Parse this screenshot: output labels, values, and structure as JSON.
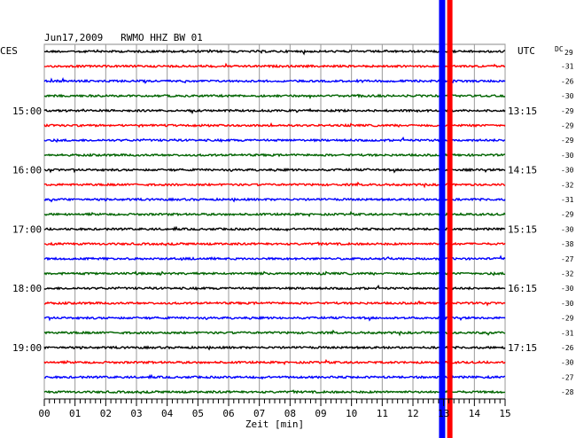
{
  "header": {
    "title": "Jun17,2009   RWMO HHZ BW 01",
    "left_zone": "CES",
    "right_zone": "UTC",
    "dc_label": "DC"
  },
  "chart_data": {
    "type": "line",
    "title": "Jun17,2009   RWMO HHZ BW 01",
    "xlabel": "Zeit [min]",
    "xlim": [
      0,
      15
    ],
    "x_ticks": [
      "00",
      "01",
      "02",
      "03",
      "04",
      "05",
      "06",
      "07",
      "08",
      "09",
      "10",
      "11",
      "12",
      "13",
      "14",
      "15"
    ],
    "trace_colors": [
      "#000000",
      "#ff0000",
      "#0000ff",
      "#006400"
    ],
    "left_time_labels": [
      {
        "trace": 4,
        "label": "15:00"
      },
      {
        "trace": 8,
        "label": "16:00"
      },
      {
        "trace": 12,
        "label": "17:00"
      },
      {
        "trace": 16,
        "label": "18:00"
      },
      {
        "trace": 20,
        "label": "19:00"
      }
    ],
    "right_time_labels": [
      {
        "trace": 4,
        "label": "13:15"
      },
      {
        "trace": 8,
        "label": "14:15"
      },
      {
        "trace": 12,
        "label": "15:15"
      },
      {
        "trace": 16,
        "label": "16:15"
      },
      {
        "trace": 20,
        "label": "17:15"
      }
    ],
    "dc_offsets": [
      "29",
      "-31",
      "-26",
      "-30",
      "-29",
      "-29",
      "-29",
      "-30",
      "-30",
      "-32",
      "-31",
      "-29",
      "-30",
      "-38",
      "-27",
      "-32",
      "-30",
      "-30",
      "-29",
      "-31",
      "-26",
      "-30",
      "-27",
      "-28"
    ],
    "event": {
      "minute_blue": 12.95,
      "minute_red": 13.2
    }
  }
}
